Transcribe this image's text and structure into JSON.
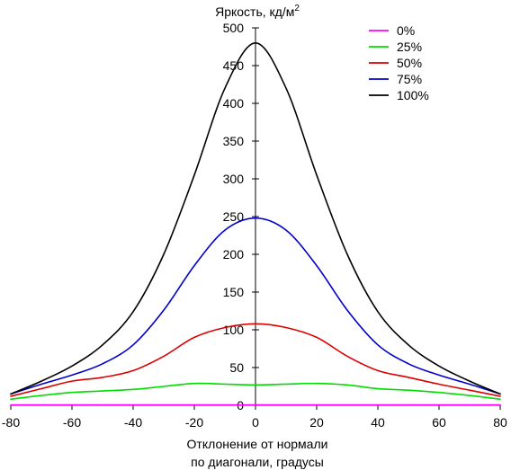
{
  "chart_data": {
    "type": "line",
    "title": "",
    "ylabel": "Яркость, кд/м",
    "ylabel_superscript": "2",
    "xlabel_line1": "Отклонение от нормали",
    "xlabel_line2": "по диагонали, градусы",
    "xlim": [
      -80,
      80
    ],
    "ylim": [
      0,
      500
    ],
    "xticks": [
      -80,
      -60,
      -40,
      -20,
      0,
      20,
      40,
      60,
      80
    ],
    "yticks": [
      0,
      50,
      100,
      150,
      200,
      250,
      300,
      350,
      400,
      450,
      500
    ],
    "grid": false,
    "legend_position": "top-right",
    "x": [
      -80,
      -70,
      -60,
      -50,
      -40,
      -30,
      -20,
      -10,
      0,
      10,
      20,
      30,
      40,
      50,
      60,
      70,
      80
    ],
    "series": [
      {
        "name": "0%",
        "color": "#ff00ff",
        "values": [
          0.5,
          0.5,
          0.5,
          0.5,
          0.5,
          0.5,
          0.5,
          0.5,
          0.5,
          0.5,
          0.5,
          0.5,
          0.5,
          0.5,
          0.5,
          0.5,
          0.5
        ]
      },
      {
        "name": "25%",
        "color": "#00dd00",
        "values": [
          8,
          13,
          17,
          19,
          21,
          25,
          29,
          28,
          27,
          28,
          29,
          27,
          22,
          20,
          17,
          13,
          8
        ]
      },
      {
        "name": "50%",
        "color": "#dd0000",
        "values": [
          12,
          22,
          32,
          37,
          46,
          65,
          90,
          103,
          108,
          103,
          90,
          65,
          46,
          37,
          28,
          20,
          12
        ]
      },
      {
        "name": "75%",
        "color": "#0000cc",
        "values": [
          15,
          28,
          40,
          55,
          80,
          126,
          185,
          232,
          248,
          232,
          185,
          126,
          80,
          55,
          40,
          28,
          15
        ]
      },
      {
        "name": "100%",
        "color": "#000000",
        "values": [
          15,
          32,
          52,
          80,
          124,
          200,
          305,
          420,
          480,
          420,
          305,
          200,
          124,
          80,
          52,
          32,
          15
        ]
      }
    ]
  }
}
